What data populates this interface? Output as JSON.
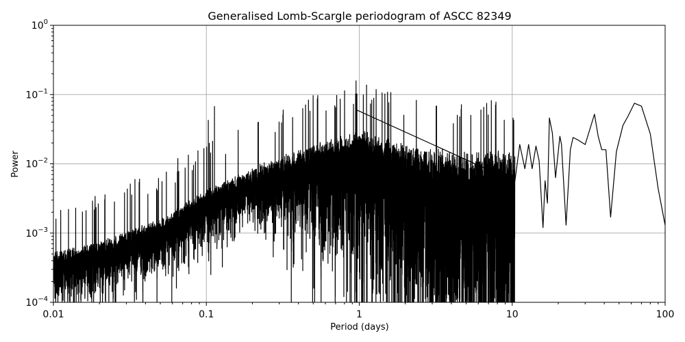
{
  "chart_data": {
    "type": "line",
    "title": "Generalised Lomb-Scargle periodogram of ASCC 82349",
    "xlabel": "Period (days)",
    "ylabel": "Power",
    "xscale": "log",
    "yscale": "log",
    "xlim": [
      0.01,
      100
    ],
    "ylim": [
      0.0001,
      1
    ],
    "grid": true,
    "legend": null,
    "x_ticks": [
      {
        "value": 0.01,
        "label": "0.01"
      },
      {
        "value": 0.1,
        "label": "0.1"
      },
      {
        "value": 1,
        "label": "1"
      },
      {
        "value": 10,
        "label": "10"
      },
      {
        "value": 100,
        "label": "100"
      }
    ],
    "y_ticks": [
      {
        "value": 0.0001,
        "base": "10",
        "exp": "−4"
      },
      {
        "value": 0.001,
        "base": "10",
        "exp": "−3"
      },
      {
        "value": 0.01,
        "base": "10",
        "exp": "−2"
      },
      {
        "value": 0.1,
        "base": "10",
        "exp": "−1"
      },
      {
        "value": 1,
        "base": "10",
        "exp": "0"
      }
    ],
    "line_color": "#000000",
    "grid_color": "#b0b0b0",
    "notable_peaks": [
      {
        "period": 0.113,
        "power": 0.068
      },
      {
        "period": 0.103,
        "power": 0.043
      },
      {
        "period": 0.96,
        "power": 0.06
      },
      {
        "period": 17.5,
        "power": 0.046
      },
      {
        "period": 34.5,
        "power": 0.052
      },
      {
        "period": 63,
        "power": 0.075
      }
    ],
    "envelope": {
      "description": "Dense aliased noise; upper envelope rises from ~5e-4 at 0.01 d to ~3e-2 near 1 d",
      "points": [
        {
          "period": 0.01,
          "power": 0.0005
        },
        {
          "period": 0.02,
          "power": 0.0007
        },
        {
          "period": 0.05,
          "power": 0.0015
        },
        {
          "period": 0.1,
          "power": 0.004
        },
        {
          "period": 0.3,
          "power": 0.012
        },
        {
          "period": 1,
          "power": 0.03
        },
        {
          "period": 3,
          "power": 0.015
        }
      ]
    },
    "long_period_tail": [
      {
        "period": 10.4,
        "power": 0.0055
      },
      {
        "period": 11.2,
        "power": 0.019
      },
      {
        "period": 12.1,
        "power": 0.0085
      },
      {
        "period": 12.8,
        "power": 0.019
      },
      {
        "period": 13.5,
        "power": 0.0085
      },
      {
        "period": 14.3,
        "power": 0.018
      },
      {
        "period": 15.0,
        "power": 0.011
      },
      {
        "period": 15.9,
        "power": 0.0012
      },
      {
        "period": 16.4,
        "power": 0.0057
      },
      {
        "period": 17.0,
        "power": 0.0027
      },
      {
        "period": 17.5,
        "power": 0.046
      },
      {
        "period": 18.3,
        "power": 0.028
      },
      {
        "period": 19.2,
        "power": 0.0063
      },
      {
        "period": 20.5,
        "power": 0.025
      },
      {
        "period": 21.0,
        "power": 0.019
      },
      {
        "period": 22.5,
        "power": 0.0013
      },
      {
        "period": 24.0,
        "power": 0.016
      },
      {
        "period": 25.0,
        "power": 0.024
      },
      {
        "period": 27.0,
        "power": 0.022
      },
      {
        "period": 30.0,
        "power": 0.019
      },
      {
        "period": 34.5,
        "power": 0.052
      },
      {
        "period": 36.5,
        "power": 0.025
      },
      {
        "period": 38.5,
        "power": 0.016
      },
      {
        "period": 41.0,
        "power": 0.016
      },
      {
        "period": 44.0,
        "power": 0.0017
      },
      {
        "period": 48.0,
        "power": 0.015
      },
      {
        "period": 53.0,
        "power": 0.036
      },
      {
        "period": 57.0,
        "power": 0.048
      },
      {
        "period": 63.0,
        "power": 0.075
      },
      {
        "period": 70.0,
        "power": 0.068
      },
      {
        "period": 80.0,
        "power": 0.027
      },
      {
        "period": 90.0,
        "power": 0.0044
      },
      {
        "period": 100.0,
        "power": 0.0013
      }
    ]
  }
}
